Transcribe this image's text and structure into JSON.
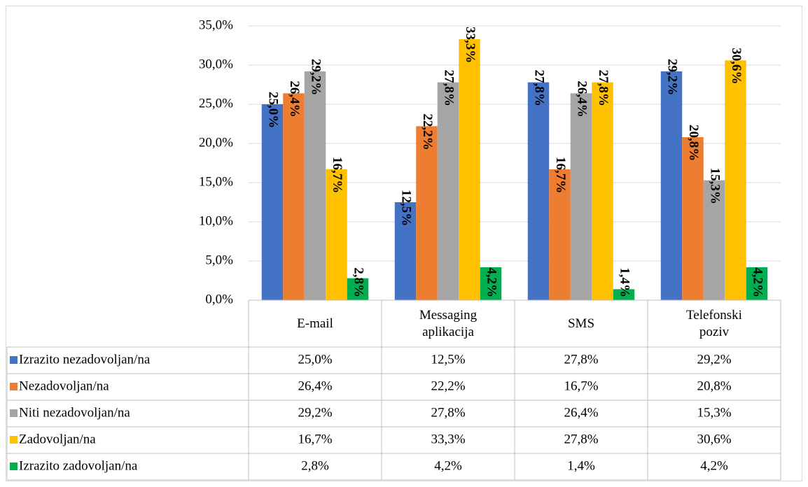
{
  "chart_data": {
    "type": "bar",
    "categories": [
      "E-mail",
      "Messaging aplikacija",
      "SMS",
      "Telefonski poziv"
    ],
    "series": [
      {
        "name": "Izrazito nezadovoljan/na",
        "color": "#4472c4",
        "values": [
          25.0,
          12.5,
          27.8,
          29.2
        ],
        "value_labels": [
          "25,0%",
          "12,5%",
          "27,8%",
          "29,2%"
        ]
      },
      {
        "name": "Nezadovoljan/na",
        "color": "#ed7d31",
        "values": [
          26.4,
          22.2,
          16.7,
          20.8
        ],
        "value_labels": [
          "26,4%",
          "22,2%",
          "16,7%",
          "20,8%"
        ]
      },
      {
        "name": "Niti nezadovoljan/na",
        "color": "#a5a5a5",
        "values": [
          29.2,
          27.8,
          26.4,
          15.3
        ],
        "value_labels": [
          "29,2%",
          "27,8%",
          "26,4%",
          "15,3%"
        ]
      },
      {
        "name": "Zadovoljan/na",
        "color": "#ffc000",
        "values": [
          16.7,
          33.3,
          27.8,
          30.6
        ],
        "value_labels": [
          "16,7%",
          "33,3%",
          "27,8%",
          "30,6%"
        ]
      },
      {
        "name": "Izrazito zadovoljan/na",
        "color": "#00b050",
        "values": [
          2.8,
          4.2,
          1.4,
          4.2
        ],
        "value_labels": [
          "2,8%",
          "4,2%",
          "1,4%",
          "4,2%"
        ]
      }
    ],
    "ylim": [
      0,
      35
    ],
    "yticks": [
      {
        "value": 0,
        "label": "0,0%"
      },
      {
        "value": 5,
        "label": "5,0%"
      },
      {
        "value": 10,
        "label": "10,0%"
      },
      {
        "value": 15,
        "label": "15,0%"
      },
      {
        "value": 20,
        "label": "20,0%"
      },
      {
        "value": 25,
        "label": "25,0%"
      },
      {
        "value": 30,
        "label": "30,0%"
      },
      {
        "value": 35,
        "label": "35,0%"
      }
    ],
    "grid": true
  }
}
